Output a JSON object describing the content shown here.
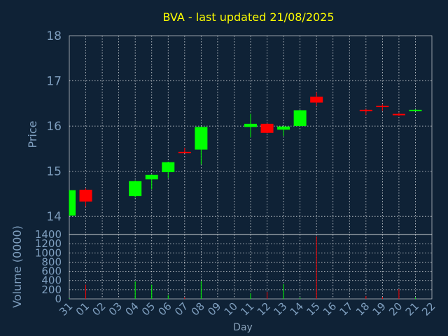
{
  "title": "BVA - last updated 21/08/2025",
  "colors": {
    "background": "#0f2236",
    "title": "#ffff00",
    "axis_text": "#7f9fbf",
    "up": "#00ff00",
    "down": "#ff0000",
    "grid": "#ffffff",
    "frame": "#ffffff"
  },
  "chart_data": [
    {
      "type": "candlestick",
      "ylabel": "Price",
      "ylim": [
        13.6,
        18
      ],
      "yticks": [
        14,
        15,
        16,
        17,
        18
      ],
      "grid": true,
      "x": [
        "31",
        "01",
        "02",
        "03",
        "04",
        "05",
        "06",
        "07",
        "08",
        "09",
        "10",
        "11",
        "12",
        "13",
        "14",
        "15",
        "16",
        "17",
        "18",
        "19",
        "20",
        "21",
        "22"
      ],
      "candles": [
        {
          "x": "31",
          "open": 14.02,
          "close": 14.58,
          "high": 14.58,
          "low": 14.02
        },
        {
          "x": "01",
          "open": 14.59,
          "close": 14.33,
          "high": 14.62,
          "low": 14.22
        },
        {
          "x": "04",
          "open": 14.45,
          "close": 14.78,
          "high": 14.8,
          "low": 14.42
        },
        {
          "x": "05",
          "open": 14.82,
          "close": 14.92,
          "high": 14.93,
          "low": 14.6
        },
        {
          "x": "06",
          "open": 14.98,
          "close": 15.2,
          "high": 15.21,
          "low": 14.85
        },
        {
          "x": "07",
          "open": 15.43,
          "close": 15.42,
          "high": 15.52,
          "low": 15.4
        },
        {
          "x": "08",
          "open": 15.48,
          "close": 15.98,
          "high": 15.99,
          "low": 15.15
        },
        {
          "x": "11",
          "open": 15.98,
          "close": 16.05,
          "high": 16.27,
          "low": 15.75
        },
        {
          "x": "12",
          "open": 16.05,
          "close": 15.85,
          "high": 16.06,
          "low": 15.84
        },
        {
          "x": "13",
          "open": 15.92,
          "close": 15.99,
          "high": 16.0,
          "low": 15.78
        },
        {
          "x": "14",
          "open": 16.0,
          "close": 16.35,
          "high": 16.36,
          "low": 15.99
        },
        {
          "x": "15",
          "open": 16.65,
          "close": 16.52,
          "high": 16.75,
          "low": 16.45
        },
        {
          "x": "18",
          "open": 16.36,
          "close": 16.34,
          "high": 16.38,
          "low": 16.25
        },
        {
          "x": "19",
          "open": 16.45,
          "close": 16.43,
          "high": 16.48,
          "low": 16.34
        },
        {
          "x": "20",
          "open": 16.27,
          "close": 16.25,
          "high": 16.29,
          "low": 16.22
        },
        {
          "x": "21",
          "open": 16.34,
          "close": 16.36,
          "high": 16.37,
          "low": 16.33
        }
      ]
    },
    {
      "type": "bar",
      "ylabel": "Volume (0000)",
      "xlabel": "Day",
      "ylim": [
        0,
        1400
      ],
      "yticks": [
        0,
        200,
        400,
        600,
        800,
        1000,
        1200,
        1400
      ],
      "grid": true,
      "categories": [
        "31",
        "01",
        "02",
        "03",
        "04",
        "05",
        "06",
        "07",
        "08",
        "09",
        "10",
        "11",
        "12",
        "13",
        "14",
        "15",
        "16",
        "17",
        "18",
        "19",
        "20",
        "21",
        "22"
      ],
      "bars": [
        {
          "x": "31",
          "value": 10,
          "dir": "up"
        },
        {
          "x": "01",
          "value": 310,
          "dir": "down"
        },
        {
          "x": "04",
          "value": 380,
          "dir": "up"
        },
        {
          "x": "05",
          "value": 310,
          "dir": "up"
        },
        {
          "x": "06",
          "value": 80,
          "dir": "up"
        },
        {
          "x": "07",
          "value": 30,
          "dir": "down"
        },
        {
          "x": "08",
          "value": 390,
          "dir": "up"
        },
        {
          "x": "11",
          "value": 120,
          "dir": "up"
        },
        {
          "x": "12",
          "value": 150,
          "dir": "down"
        },
        {
          "x": "13",
          "value": 320,
          "dir": "up"
        },
        {
          "x": "14",
          "value": 30,
          "dir": "up"
        },
        {
          "x": "15",
          "value": 1360,
          "dir": "down"
        },
        {
          "x": "18",
          "value": 60,
          "dir": "down"
        },
        {
          "x": "19",
          "value": 40,
          "dir": "down"
        },
        {
          "x": "20",
          "value": 210,
          "dir": "down"
        },
        {
          "x": "21",
          "value": 30,
          "dir": "up"
        }
      ]
    }
  ]
}
